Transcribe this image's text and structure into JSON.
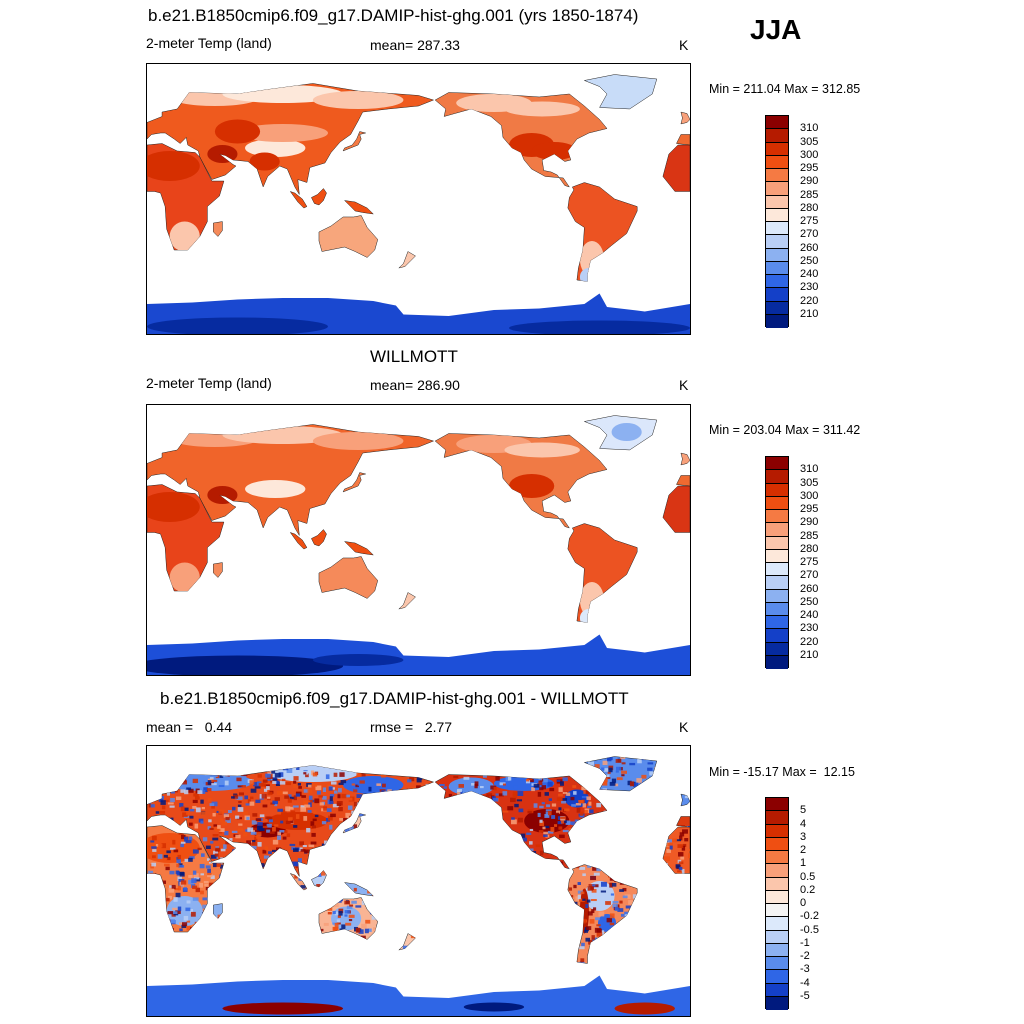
{
  "season": "JJA",
  "panels": [
    {
      "id": "model",
      "title": "b.e21.B1850cmip6.f09_g17.DAMIP-hist-ghg.001 (yrs 1850-1874)",
      "left_label": "2-meter Temp (land)",
      "center_label": "mean= 287.33",
      "units": "K",
      "minmax": "Min = 211.04 Max = 312.85",
      "colorbar": {
        "labels": [
          "310",
          "305",
          "300",
          "295",
          "290",
          "285",
          "280",
          "275",
          "270",
          "260",
          "250",
          "240",
          "230",
          "220",
          "210"
        ],
        "colors": [
          "#8b0000",
          "#b51b00",
          "#d62f00",
          "#ef4f12",
          "#f57a43",
          "#f8a07a",
          "#fbc6ac",
          "#fde8da",
          "#dce9fb",
          "#b9cff6",
          "#8cb1f1",
          "#5a8cec",
          "#2f66e6",
          "#1440c8",
          "#062ba0",
          "#001a7e"
        ]
      }
    },
    {
      "id": "obs",
      "title": "WILLMOTT",
      "left_label": "2-meter Temp (land)",
      "center_label": "mean= 286.90",
      "units": "K",
      "minmax": "Min = 203.04 Max = 311.42",
      "colorbar": {
        "labels": [
          "310",
          "305",
          "300",
          "295",
          "290",
          "285",
          "280",
          "275",
          "270",
          "260",
          "250",
          "240",
          "230",
          "220",
          "210"
        ],
        "colors": [
          "#8b0000",
          "#b51b00",
          "#d62f00",
          "#ef4f12",
          "#f57a43",
          "#f8a07a",
          "#fbc6ac",
          "#fde8da",
          "#dce9fb",
          "#b9cff6",
          "#8cb1f1",
          "#5a8cec",
          "#2f66e6",
          "#1440c8",
          "#062ba0",
          "#001a7e"
        ]
      }
    },
    {
      "id": "diff",
      "title": "b.e21.B1850cmip6.f09_g17.DAMIP-hist-ghg.001 - WILLMOTT",
      "left_label": "mean =   0.44",
      "center_label": "rmse =   2.77",
      "units": "K",
      "minmax": "Min = -15.17 Max =  12.15",
      "colorbar": {
        "labels": [
          "5",
          "4",
          "3",
          "2",
          "1",
          "0.5",
          "0.2",
          "0",
          "-0.2",
          "-0.5",
          "-1",
          "-2",
          "-3",
          "-4",
          "-5"
        ],
        "colors": [
          "#8b0000",
          "#b51b00",
          "#d62f00",
          "#ef4f12",
          "#f57a43",
          "#f8a07a",
          "#fbc6ac",
          "#fde8da",
          "#f4f4f4",
          "#dce9fb",
          "#b9cff6",
          "#8cb1f1",
          "#5a8cec",
          "#2f66e6",
          "#1440c8",
          "#001a7e"
        ]
      }
    }
  ]
}
